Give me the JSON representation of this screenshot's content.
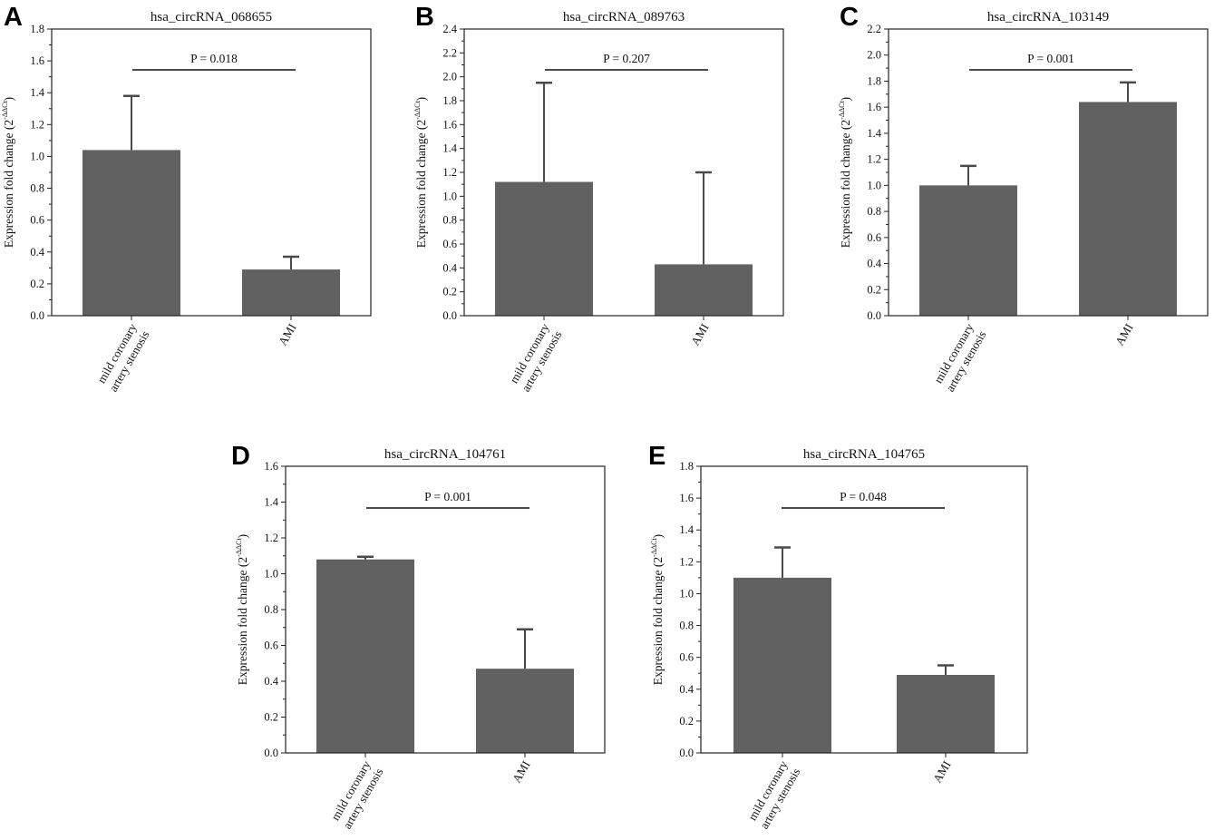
{
  "figure_title": "",
  "chart_data": [
    {
      "type": "bar",
      "panel": "A",
      "title": "hsa_circRNA_068655",
      "ylabel": "Expression fold change (2^-ΔΔCt)",
      "ylabel_base": "Expression fold change (2",
      "ylabel_sup": "-ΔΔCt",
      "ylabel_end": ")",
      "ylim": [
        0,
        1.8
      ],
      "ytick_step": 0.2,
      "categories": [
        "mild coronary artery stenosis",
        "AMI"
      ],
      "category_lines": [
        [
          "mild coronary",
          "artery stenosis"
        ],
        [
          "AMI"
        ]
      ],
      "values": [
        1.04,
        0.29
      ],
      "errors": [
        0.34,
        0.08
      ],
      "p_label": "P = 0.018",
      "bar_color": "#616161"
    },
    {
      "type": "bar",
      "panel": "B",
      "title": "hsa_circRNA_089763",
      "ylabel": "Expression fold change (2^-ΔΔCt)",
      "ylabel_base": "Expression fold change (2",
      "ylabel_sup": "-ΔΔCt",
      "ylabel_end": ")",
      "ylim": [
        0,
        2.4
      ],
      "ytick_step": 0.2,
      "categories": [
        "mild coronary artery stenosis",
        "AMI"
      ],
      "category_lines": [
        [
          "mild coronary",
          "artery stenosis"
        ],
        [
          "AMI"
        ]
      ],
      "values": [
        1.12,
        0.43
      ],
      "errors": [
        0.83,
        0.77
      ],
      "p_label": "P = 0.207",
      "bar_color": "#616161"
    },
    {
      "type": "bar",
      "panel": "C",
      "title": "hsa_circRNA_103149",
      "ylabel": "Expression fold change (2^-ΔΔCt)",
      "ylabel_base": "Expression fold change (2",
      "ylabel_sup": "-ΔΔCt",
      "ylabel_end": ")",
      "ylim": [
        0,
        2.2
      ],
      "ytick_step": 0.2,
      "categories": [
        "mild coronary artery stenosis",
        "AMI"
      ],
      "category_lines": [
        [
          "mild coronary",
          "artery stenosis"
        ],
        [
          "AMI"
        ]
      ],
      "values": [
        1.0,
        1.64
      ],
      "errors": [
        0.15,
        0.15
      ],
      "p_label": "P = 0.001",
      "bar_color": "#616161"
    },
    {
      "type": "bar",
      "panel": "D",
      "title": "hsa_circRNA_104761",
      "ylabel": "Expression fold change (2^-ΔΔCt)",
      "ylabel_base": "Expression fold change (2",
      "ylabel_sup": "-ΔΔCt",
      "ylabel_end": ")",
      "ylim": [
        0,
        1.6
      ],
      "ytick_step": 0.2,
      "categories": [
        "mild coronary artery stenosis",
        "AMI"
      ],
      "category_lines": [
        [
          "mild coronary",
          "artery stenosis"
        ],
        [
          "AMI"
        ]
      ],
      "values": [
        1.08,
        0.47
      ],
      "errors": [
        0.015,
        0.22
      ],
      "p_label": "P = 0.001",
      "bar_color": "#616161"
    },
    {
      "type": "bar",
      "panel": "E",
      "title": "hsa_circRNA_104765",
      "ylabel": "Expression fold change (2^-ΔΔCt)",
      "ylabel_base": "Expression fold change (2",
      "ylabel_sup": "-ΔΔCt",
      "ylabel_end": ")",
      "ylim": [
        0,
        1.8
      ],
      "ytick_step": 0.2,
      "categories": [
        "mild coronary artery stenosis",
        "AMI"
      ],
      "category_lines": [
        [
          "mild coronary",
          "artery stenosis"
        ],
        [
          "AMI"
        ]
      ],
      "values": [
        1.1,
        0.49
      ],
      "errors": [
        0.19,
        0.06
      ],
      "p_label": "P = 0.048",
      "bar_color": "#616161"
    }
  ]
}
